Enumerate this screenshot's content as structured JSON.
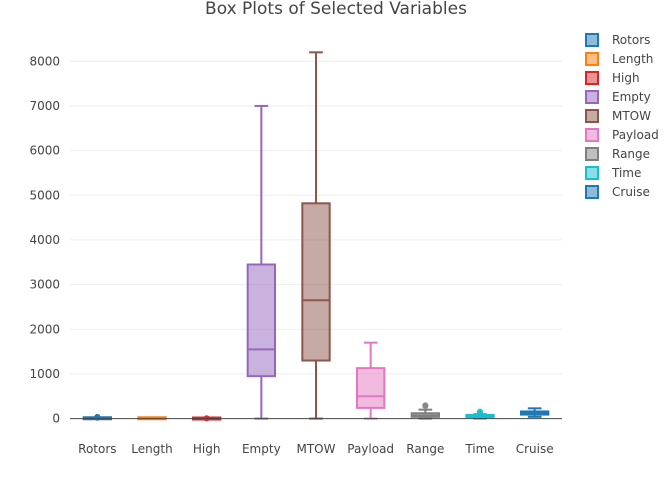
{
  "chart_data": {
    "type": "box",
    "title": "Box Plots of Selected Variables",
    "ylim": [
      -300,
      8700
    ],
    "yticks": [
      0,
      1000,
      2000,
      3000,
      4000,
      5000,
      6000,
      7000,
      8000
    ],
    "grid": true,
    "legend_position": "top-right",
    "series": [
      {
        "name": "Rotors",
        "color": "#1f77b4",
        "min": 1,
        "q1": 4,
        "median": 6,
        "q3": 8,
        "max": 12,
        "outliers": [
          20,
          25,
          30,
          35,
          40
        ]
      },
      {
        "name": "Length",
        "color": "#ff7f0e",
        "min": 1,
        "q1": 3,
        "median": 5,
        "q3": 8,
        "max": 15,
        "outliers": []
      },
      {
        "name": "High",
        "color": "#d62728",
        "min": 0,
        "q1": 1,
        "median": 1,
        "q3": 2,
        "max": 4,
        "outliers": [
          6,
          8
        ]
      },
      {
        "name": "Empty",
        "color": "#9467bd",
        "min": 0,
        "q1": 950,
        "median": 1550,
        "q3": 3450,
        "max": 7000,
        "outliers": []
      },
      {
        "name": "MTOW",
        "color": "#8c564b",
        "min": 0,
        "q1": 1300,
        "median": 2650,
        "q3": 4820,
        "max": 8200,
        "outliers": []
      },
      {
        "name": "Payload",
        "color": "#e377c2",
        "min": 0,
        "q1": 240,
        "median": 500,
        "q3": 1130,
        "max": 1700,
        "outliers": []
      },
      {
        "name": "Range",
        "color": "#7f7f7f",
        "min": 0,
        "q1": 40,
        "median": 70,
        "q3": 120,
        "max": 200,
        "outliers": [
          280,
          300
        ]
      },
      {
        "name": "Time",
        "color": "#17becf",
        "min": 0,
        "q1": 20,
        "median": 35,
        "q3": 60,
        "max": 100,
        "outliers": [
          120,
          140,
          160
        ]
      },
      {
        "name": "Cruise",
        "color": "#1f77b4",
        "min": 40,
        "q1": 90,
        "median": 130,
        "q3": 160,
        "max": 230,
        "outliers": []
      }
    ]
  }
}
